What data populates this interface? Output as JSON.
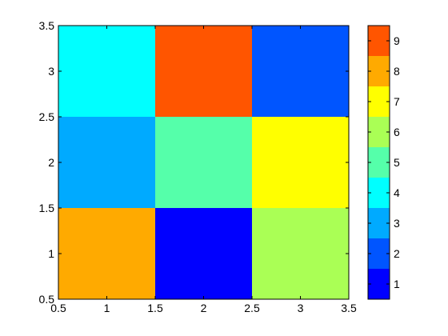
{
  "chart_data": {
    "type": "heatmap",
    "x": [
      1,
      2,
      3
    ],
    "y": [
      1,
      2,
      3
    ],
    "z": [
      [
        8,
        1,
        6
      ],
      [
        3,
        5,
        7
      ],
      [
        4,
        9,
        2
      ]
    ],
    "xlim": [
      0.5,
      3.5
    ],
    "ylim": [
      0.5,
      3.5
    ],
    "x_ticks": [
      "0.5",
      "1",
      "1.5",
      "2",
      "2.5",
      "3",
      "3.5"
    ],
    "y_ticks": [
      "0.5",
      "1",
      "1.5",
      "2",
      "2.5",
      "3",
      "3.5"
    ],
    "grid": false,
    "colorbar": {
      "placement": "right",
      "range": [
        0.5,
        9.5
      ],
      "ticks": [
        "1",
        "2",
        "3",
        "4",
        "5",
        "6",
        "7",
        "8",
        "9"
      ],
      "colors": [
        "#0000ff",
        "#0055ff",
        "#00aaff",
        "#00ffff",
        "#55ffaa",
        "#aaff55",
        "#ffff00",
        "#ffaa00",
        "#ff5500"
      ]
    }
  }
}
